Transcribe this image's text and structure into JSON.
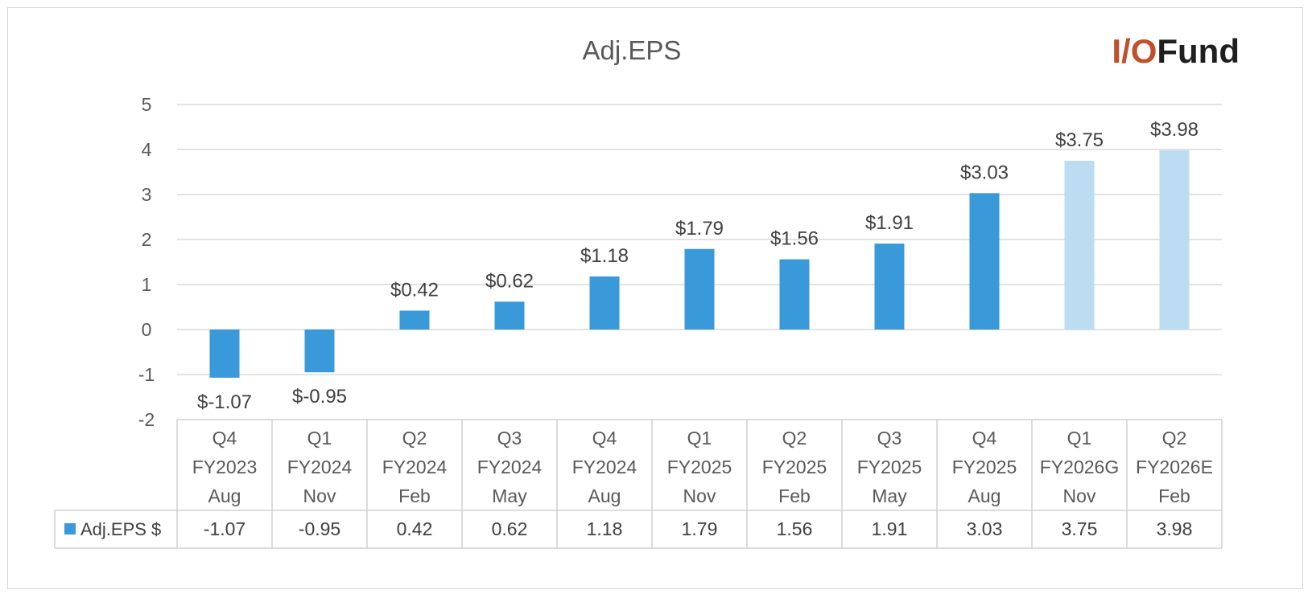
{
  "chart_data": {
    "type": "bar",
    "title": "Adj.EPS",
    "brand": {
      "prefix": "I/O",
      "suffix": "Fund",
      "prefix_color": "#c0502a",
      "suffix_color": "#1f1f1f"
    },
    "categories": [
      [
        "Q4",
        "FY2023",
        "Aug"
      ],
      [
        "Q1",
        "FY2024",
        "Nov"
      ],
      [
        "Q2",
        "FY2024",
        "Feb"
      ],
      [
        "Q3",
        "FY2024",
        "May"
      ],
      [
        "Q4",
        "FY2024",
        "Aug"
      ],
      [
        "Q1",
        "FY2025",
        "Nov"
      ],
      [
        "Q2",
        "FY2025",
        "Feb"
      ],
      [
        "Q3",
        "FY2025",
        "May"
      ],
      [
        "Q4",
        "FY2025",
        "Aug"
      ],
      [
        "Q1",
        "FY2026G",
        "Nov"
      ],
      [
        "Q2",
        "FY2026E",
        "Feb"
      ]
    ],
    "series": [
      {
        "name": "Adj.EPS $",
        "values": [
          -1.07,
          -0.95,
          0.42,
          0.62,
          1.18,
          1.79,
          1.56,
          1.91,
          3.03,
          3.75,
          3.98
        ],
        "data_labels": [
          "$-1.07",
          "$-0.95",
          "$0.42",
          "$0.62",
          "$1.18",
          "$1.79",
          "$1.56",
          "$1.91",
          "$3.03",
          "$3.75",
          "$3.98"
        ],
        "table_values": [
          "-1.07",
          "-0.95",
          "0.42",
          "0.62",
          "1.18",
          "1.79",
          "1.56",
          "1.91",
          "3.03",
          "3.75",
          "3.98"
        ],
        "bar_colors": [
          "#3a9ad9",
          "#3a9ad9",
          "#3a9ad9",
          "#3a9ad9",
          "#3a9ad9",
          "#3a9ad9",
          "#3a9ad9",
          "#3a9ad9",
          "#3a9ad9",
          "#bcdcf2",
          "#bcdcf2"
        ]
      }
    ],
    "ylim": [
      -2,
      5
    ],
    "yticks": [
      5,
      4,
      3,
      2,
      1,
      0,
      -1,
      -2
    ],
    "grid": true,
    "legend": "data-table"
  }
}
